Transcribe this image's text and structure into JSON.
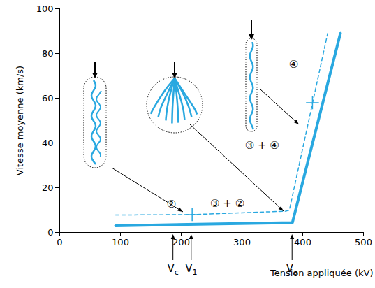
{
  "chart_data": {
    "type": "line",
    "x_label": "Tension appliquée (kV)",
    "y_label": "Vitesse moyenne (km/s)",
    "xlim": [
      0,
      500
    ],
    "xticks": [
      0,
      100,
      200,
      300,
      400,
      500
    ],
    "ylim": [
      0,
      100
    ],
    "yticks": [
      0,
      20,
      40,
      60,
      80,
      100
    ],
    "grid": false,
    "series": [
      {
        "color": "#29a8e0",
        "line_style": "solid",
        "x": [
          92,
          383,
          462
        ],
        "values": [
          3,
          4.4,
          89
        ]
      },
      {
        "color": "#29a8e0",
        "line_style": "dashed",
        "x": [
          92,
          218,
          372,
          378,
          441
        ],
        "values": [
          7.8,
          8,
          9.5,
          10,
          89
        ]
      }
    ],
    "annotations": [
      {
        "text": "②",
        "x": 184,
        "y": 12.5
      },
      {
        "text": "③ + ②",
        "x": 276,
        "y": 13
      },
      {
        "text": "③ + ④",
        "x": 333,
        "y": 39
      },
      {
        "text": "④",
        "x": 385,
        "y": 75
      }
    ],
    "boundary_marks": [
      {
        "x": 218,
        "y": 8
      },
      {
        "x": 416,
        "y": 58
      }
    ],
    "axis_markers": [
      {
        "label": "Vc",
        "x": 187
      },
      {
        "label": "V1",
        "x": 217
      },
      {
        "label": "Va",
        "x": 383
      }
    ]
  }
}
